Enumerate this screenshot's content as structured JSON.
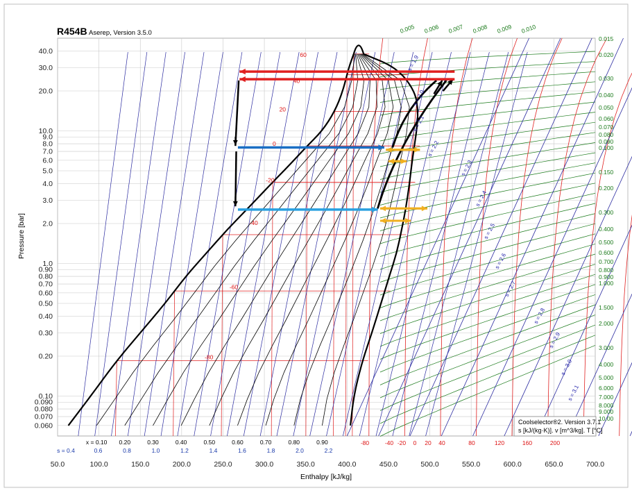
{
  "header": {
    "title": "R454B",
    "subtitle": "Aserep, Version 3.5.0"
  },
  "footer_box": {
    "line1": "Coolselector®2. Version 3.7.1",
    "line2": "s [kJ/(kg·K)]. v [m^3/kg]. T [°C]"
  },
  "chart_data": {
    "type": "line",
    "title": "R454B",
    "xlabel": "Enthalpy [kJ/kg]",
    "ylabel": "Pressure [bar]",
    "xlim": [
      50,
      700
    ],
    "ylim": [
      0.05,
      50
    ],
    "yscale": "log",
    "grid": true,
    "x_ticks": [
      "50.0",
      "100.0",
      "150.0",
      "200.0",
      "250.0",
      "300.0",
      "350.0",
      "400.0",
      "450.0",
      "500.0",
      "550.0",
      "600.0",
      "650.0",
      "700.0"
    ],
    "y_ticks": [
      {
        "v": 40,
        "t": "40.0"
      },
      {
        "v": 30,
        "t": "30.0"
      },
      {
        "v": 20,
        "t": "20.0"
      },
      {
        "v": 10,
        "t": "10.0"
      },
      {
        "v": 9,
        "t": "9.0"
      },
      {
        "v": 8,
        "t": "8.0"
      },
      {
        "v": 7,
        "t": "7.0"
      },
      {
        "v": 6,
        "t": "6.0"
      },
      {
        "v": 5,
        "t": "5.0"
      },
      {
        "v": 4,
        "t": "4.0"
      },
      {
        "v": 3,
        "t": "3.0"
      },
      {
        "v": 2,
        "t": "2.0"
      },
      {
        "v": 1,
        "t": "1.0"
      },
      {
        "v": 0.9,
        "t": "0.90"
      },
      {
        "v": 0.8,
        "t": "0.80"
      },
      {
        "v": 0.7,
        "t": "0.70"
      },
      {
        "v": 0.6,
        "t": "0.60"
      },
      {
        "v": 0.5,
        "t": "0.50"
      },
      {
        "v": 0.4,
        "t": "0.40"
      },
      {
        "v": 0.3,
        "t": "0.30"
      },
      {
        "v": 0.2,
        "t": "0.20"
      },
      {
        "v": 0.1,
        "t": "0.10"
      },
      {
        "v": 0.09,
        "t": "0.090"
      },
      {
        "v": 0.08,
        "t": "0.080"
      },
      {
        "v": 0.07,
        "t": "0.070"
      },
      {
        "v": 0.06,
        "t": "0.060"
      }
    ],
    "saturation_dome": {
      "liquid_h": [
        63,
        90,
        120,
        150,
        180,
        205,
        230,
        255,
        280,
        305,
        330,
        350,
        370,
        385,
        395,
        402,
        408
      ],
      "vapor_h": [
        404,
        408,
        418,
        430,
        441,
        451,
        460,
        466,
        471,
        475,
        478,
        481,
        484,
        486,
        482,
        460,
        420
      ],
      "p": [
        0.06,
        0.1,
        0.18,
        0.3,
        0.5,
        0.8,
        1.2,
        1.8,
        2.6,
        3.8,
        5.5,
        7.5,
        10,
        14,
        20,
        30,
        38
      ]
    },
    "isotherm_labels": [
      {
        "t": "60",
        "h": 347,
        "p": 36
      },
      {
        "t": "40",
        "h": 339,
        "p": 23
      },
      {
        "t": "20",
        "h": 322,
        "p": 14
      },
      {
        "t": "0",
        "h": 312,
        "p": 7.7
      },
      {
        "t": "-20",
        "h": 307,
        "p": 4.1
      },
      {
        "t": "-40",
        "h": 287,
        "p": 1.95
      },
      {
        "t": "-60",
        "h": 263,
        "p": 0.64
      },
      {
        "t": "-80",
        "h": 233,
        "p": 0.19
      }
    ],
    "isotherm_levels_p": [
      38,
      26.5,
      14,
      7.7,
      4.1,
      1.65,
      0.62,
      0.185
    ],
    "quality_lines": [
      "0.10",
      "0.20",
      "0.30",
      "0.40",
      "0.50",
      "0.60",
      "0.70",
      "0.80",
      "0.90"
    ],
    "quality_prefix": "x = ",
    "entropy_bottom": [
      "0.4",
      "0.6",
      "0.8",
      "1.0",
      "1.2",
      "1.4",
      "1.6",
      "1.8",
      "2.0",
      "2.2"
    ],
    "entropy_prefix": "s = ",
    "entropy_diag_labels": [
      "s = 1.9",
      "s = 2.0",
      "s = 2.1",
      "s = 2.2",
      "s = 2.3",
      "s = 2.4",
      "s = 2.5",
      "s = 2.6",
      "s = 2.7",
      "s = 2.8",
      "s = 2.9",
      "s = 3.0",
      "s = 3.1"
    ],
    "temp_bottom": [
      "-80",
      "-40",
      "-20",
      "0",
      "20",
      "40",
      "80",
      "120",
      "160",
      "200"
    ],
    "volume_top": [
      "0.005",
      "0.006",
      "0.007",
      "0.008",
      "0.009",
      "0.010"
    ],
    "volume_right": [
      "0.015",
      "0.020",
      "0.030",
      "0.040",
      "0.050",
      "0.060",
      "0.070",
      "0.080",
      "0.090",
      "0.100",
      "0.150",
      "0.200",
      "0.300",
      "0.400",
      "0.500",
      "0.600",
      "0.700",
      "0.800",
      "0.900",
      "1.000",
      "1.500",
      "2.000",
      "3.000",
      "4.000",
      "5.000",
      "6.000",
      "7.000",
      "8.000",
      "9.000",
      "10.00"
    ],
    "cycle_arrows": [
      {
        "color": "#e02020",
        "h1": 530,
        "h2": 270,
        "p": 28
      },
      {
        "color": "#e02020",
        "h1": 530,
        "h2": 270,
        "p": 24.5
      },
      {
        "color": "#1a6fc4",
        "h1": 268,
        "h2": 445,
        "p": 7.5
      },
      {
        "color": "#29a0e0",
        "h1": 268,
        "h2": 437,
        "p": 2.55
      },
      {
        "color": "#f0b020",
        "h1": 447,
        "h2": 488,
        "p": 7.2
      },
      {
        "color": "#f0b020",
        "h1": 450,
        "h2": 472,
        "p": 5.9
      },
      {
        "color": "#f0b020",
        "h1": 440,
        "h2": 497,
        "p": 2.6
      },
      {
        "color": "#f0b020",
        "h1": 440,
        "h2": 477,
        "p": 2.1
      }
    ],
    "palette": {
      "red": "#e02020",
      "green": "#1a7a1a",
      "blue": "#2a2aa0",
      "black": "#000000",
      "grid": "#c8c8c8",
      "yellow": "#f0b020",
      "lightblue": "#29a0e0",
      "midblue": "#1a6fc4"
    }
  }
}
